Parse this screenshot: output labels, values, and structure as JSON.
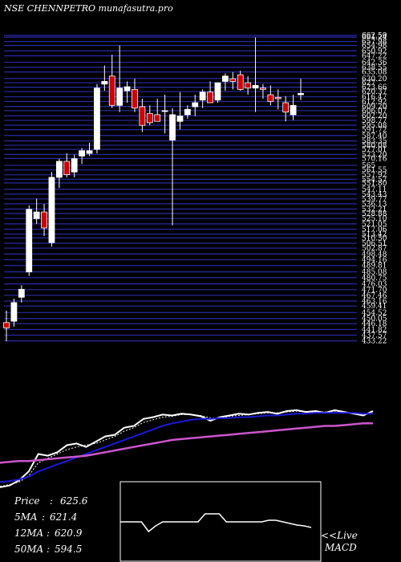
{
  "chart_data": [
    {
      "type": "candlestick",
      "title": "NSE CHENNPETRO munafasutra.pro",
      "ylim": [
        430,
        665
      ],
      "yticks": [
        662.5,
        661.24,
        657.98,
        654.98,
        650.92,
        647.22,
        642.36,
        638.55,
        635.08,
        630.2,
        627.0,
        623.66,
        620.37,
        616.47,
        612.92,
        609.2,
        606.07,
        602.2,
        598.77,
        595.08,
        591.72,
        587.4,
        583.35,
        580.08,
        577.01,
        573.2,
        570.16,
        565.0,
        561.55,
        557.92,
        554.57,
        551.8,
        547.11,
        543.43,
        539.77,
        536.13,
        532.21,
        528.88,
        525.1,
        521.05,
        517.06,
        513.42,
        510.5,
        506.51,
        502.87,
        498.48,
        494.16,
        489.81,
        485.08,
        480.75,
        476.03,
        471.7,
        467.46,
        463.16,
        459.41,
        454.52,
        450.05,
        446.18,
        441.82,
        437.57,
        433.22
      ],
      "candles": [
        {
          "o": 447,
          "h": 456,
          "l": 433,
          "c": 443
        },
        {
          "o": 448,
          "h": 465,
          "l": 444,
          "c": 462
        },
        {
          "o": 466,
          "h": 475,
          "l": 462,
          "c": 472
        },
        {
          "o": 485,
          "h": 535,
          "l": 482,
          "c": 532
        },
        {
          "o": 525,
          "h": 540,
          "l": 521,
          "c": 530
        },
        {
          "o": 530,
          "h": 536,
          "l": 512,
          "c": 518
        },
        {
          "o": 507,
          "h": 560,
          "l": 504,
          "c": 556
        },
        {
          "o": 556,
          "h": 570,
          "l": 548,
          "c": 568
        },
        {
          "o": 568,
          "h": 574,
          "l": 556,
          "c": 558
        },
        {
          "o": 560,
          "h": 573,
          "l": 556,
          "c": 570
        },
        {
          "o": 572,
          "h": 578,
          "l": 566,
          "c": 576
        },
        {
          "o": 574,
          "h": 582,
          "l": 572,
          "c": 576
        },
        {
          "o": 577,
          "h": 626,
          "l": 574,
          "c": 623
        },
        {
          "o": 626,
          "h": 640,
          "l": 621,
          "c": 628
        },
        {
          "o": 632,
          "h": 648,
          "l": 608,
          "c": 610
        },
        {
          "o": 610,
          "h": 655,
          "l": 605,
          "c": 623
        },
        {
          "o": 621,
          "h": 628,
          "l": 612,
          "c": 624
        },
        {
          "o": 622,
          "h": 630,
          "l": 605,
          "c": 608
        },
        {
          "o": 609,
          "h": 615,
          "l": 590,
          "c": 595
        },
        {
          "o": 604,
          "h": 610,
          "l": 595,
          "c": 597
        },
        {
          "o": 603,
          "h": 615,
          "l": 598,
          "c": 598
        },
        {
          "o": 606,
          "h": 618,
          "l": 589,
          "c": 606
        },
        {
          "o": 584,
          "h": 608,
          "l": 520,
          "c": 603
        },
        {
          "o": 598,
          "h": 620,
          "l": 592,
          "c": 602
        },
        {
          "o": 603,
          "h": 610,
          "l": 600,
          "c": 607
        },
        {
          "o": 609,
          "h": 618,
          "l": 602,
          "c": 612
        },
        {
          "o": 614,
          "h": 622,
          "l": 608,
          "c": 620
        },
        {
          "o": 620,
          "h": 628,
          "l": 613,
          "c": 612
        },
        {
          "o": 614,
          "h": 626,
          "l": 612,
          "c": 627
        },
        {
          "o": 628,
          "h": 634,
          "l": 621,
          "c": 632
        },
        {
          "o": 630,
          "h": 635,
          "l": 622,
          "c": 628
        },
        {
          "o": 633,
          "h": 636,
          "l": 621,
          "c": 622
        },
        {
          "o": 627,
          "h": 632,
          "l": 618,
          "c": 623
        },
        {
          "o": 623,
          "h": 661,
          "l": 605,
          "c": 625
        },
        {
          "o": 623,
          "h": 626,
          "l": 615,
          "c": 622
        },
        {
          "o": 618,
          "h": 625,
          "l": 610,
          "c": 613
        },
        {
          "o": 616,
          "h": 622,
          "l": 607,
          "c": 615
        },
        {
          "o": 612,
          "h": 617,
          "l": 598,
          "c": 605
        },
        {
          "o": 603,
          "h": 618,
          "l": 599,
          "c": 610
        },
        {
          "o": 618,
          "h": 630,
          "l": 614,
          "c": 619
        }
      ]
    },
    {
      "type": "line",
      "series": [
        {
          "name": "Price",
          "values": [
            12,
            14,
            20,
            30,
            50,
            48,
            52,
            60,
            62,
            58,
            64,
            70,
            72,
            80,
            82,
            90,
            92,
            95,
            94,
            96,
            95,
            93,
            88,
            92,
            94,
            96,
            95,
            97,
            98,
            96,
            99,
            100,
            98,
            99,
            97,
            100,
            98,
            96,
            94,
            99
          ]
        },
        {
          "name": "5MA",
          "values": [
            13,
            15,
            18,
            25,
            40,
            45,
            50,
            55,
            58,
            60,
            62,
            66,
            70,
            76,
            80,
            86,
            89,
            92,
            93,
            95,
            95,
            94,
            91,
            91,
            93,
            94,
            95,
            96,
            97,
            97,
            98,
            99,
            98,
            98,
            98,
            99,
            98,
            97,
            96,
            97
          ]
        },
        {
          "name": "12MA",
          "values": [
            18,
            19,
            21,
            24,
            30,
            34,
            38,
            42,
            46,
            50,
            54,
            58,
            62,
            66,
            70,
            74,
            78,
            82,
            85,
            87,
            89,
            90,
            90,
            91,
            91,
            92,
            92,
            93,
            94,
            94,
            95,
            96,
            96,
            97,
            97,
            97,
            97,
            97,
            96,
            96
          ]
        },
        {
          "name": "50MA",
          "values": [
            40,
            41,
            42,
            42,
            43,
            44,
            45,
            46,
            47,
            48,
            50,
            52,
            54,
            56,
            58,
            60,
            62,
            64,
            66,
            67,
            68,
            69,
            70,
            71,
            72,
            73,
            74,
            75,
            76,
            77,
            78,
            79,
            80,
            81,
            82,
            82,
            83,
            84,
            85,
            85
          ]
        }
      ]
    },
    {
      "type": "line",
      "title": "MACD",
      "series": [
        {
          "name": "MACD",
          "values": [
            50,
            50,
            50,
            50,
            38,
            45,
            50,
            50,
            50,
            50,
            50,
            50,
            60,
            60,
            60,
            50,
            50,
            50,
            50,
            50,
            50,
            52,
            52,
            50,
            48,
            46,
            45,
            43
          ]
        }
      ]
    }
  ],
  "stats": {
    "price_label": "Price",
    "price_value": "625.6",
    "ma5_label": "5MA",
    "ma5_value": "621.4",
    "ma12_label": "12MA",
    "ma12_value": "620.9",
    "ma50_label": "50MA",
    "ma50_value": "594.5"
  },
  "live_label": "<<Live",
  "macd_label": "MACD",
  "colors": {
    "background": "#000000",
    "gridline": "#2a2aa8",
    "candle_up": "#ffffff",
    "candle_down": "#cc0000",
    "price_line": "#ffffff",
    "ma5_line": "#ffffff",
    "ma12_line": "#1a1ad8",
    "ma50_line": "#cc55cc"
  }
}
